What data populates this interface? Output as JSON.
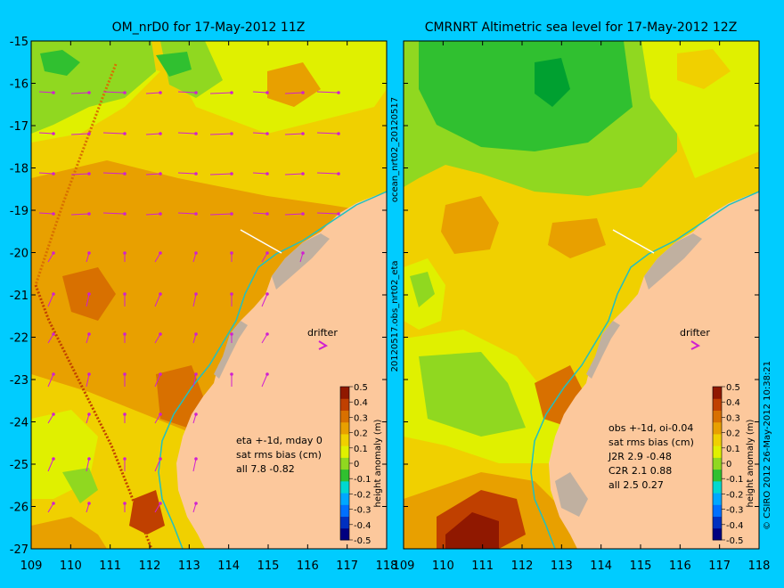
{
  "left_panel": {
    "title": "OM_nrD0 for 17-May-2012 11Z",
    "drifter_label": "drifter",
    "stats": [
      "eta +-1d, mday 0",
      "sat rms bias (cm)",
      "all 7.8 -0.82"
    ]
  },
  "right_panel": {
    "title": "CMRNRT Altimetric sea level  for 17-May-2012 12Z",
    "drifter_label": "drifter",
    "stats": [
      "obs +-1d, oi-0.04",
      "sat rms bias (cm)",
      "J2R   2.9 -0.48",
      "C2R   2.1 0.88",
      "all 2.5 0.27"
    ]
  },
  "axes": {
    "y_ticks": [
      "-15",
      "-16",
      "-17",
      "-18",
      "-19",
      "-20",
      "-21",
      "-22",
      "-23",
      "-24",
      "-25",
      "-26",
      "-27"
    ],
    "x_ticks": [
      "109",
      "110",
      "111",
      "112",
      "113",
      "114",
      "115",
      "116",
      "117",
      "118"
    ]
  },
  "colorbar": {
    "label": "height anomaly (m)",
    "ticks": [
      "0.5",
      "0.4",
      "0.3",
      "0.2",
      "0.1",
      "0",
      "-0.1",
      "-0.2",
      "-0.3",
      "-0.4",
      "-0.5"
    ],
    "colors": [
      "#000080",
      "#0030c0",
      "#0070ff",
      "#00a8ff",
      "#00d8d0",
      "#30c030",
      "#90d820",
      "#e0f000",
      "#f0d000",
      "#e8a000",
      "#d87000",
      "#c04000",
      "#901800"
    ]
  },
  "colors": {
    "land": "#fcc89c",
    "reef": "#c0b0a0",
    "coast_line": "#20c0c0",
    "track_line": "#ffffff",
    "arrows": "#d020d0",
    "background": "#00ccff"
  },
  "side_labels": {
    "middle_top": "ocean_nrt02_20120517",
    "middle_bottom": "20120517.obs_nrt02_eta",
    "right": "© CSIRO 2012   26-May-2012 10:38:21"
  }
}
